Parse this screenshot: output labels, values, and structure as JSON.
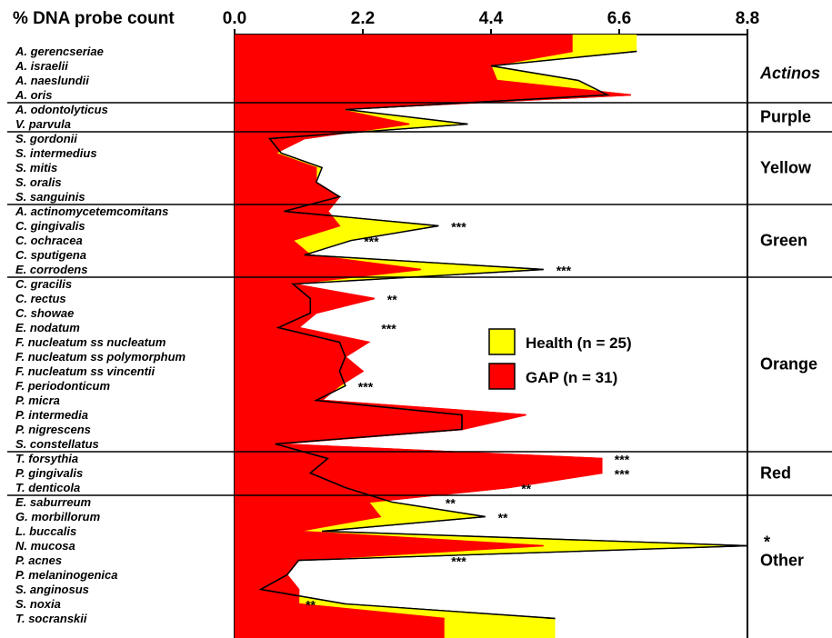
{
  "chart_data": {
    "type": "area",
    "title": "% DNA probe count",
    "orientation": "horizontal",
    "xlim": [
      0,
      8.8
    ],
    "ticks": [
      "0.0",
      "2.2",
      "4.4",
      "6.6",
      "8.8"
    ],
    "tick_values": [
      0,
      2.2,
      4.4,
      6.6,
      8.8
    ],
    "grid": false,
    "legend_position": "center-right",
    "species": [
      "A. gerencseriae",
      "A. israelii",
      "A. naeslundii",
      "A. oris",
      "A. odontolyticus",
      "V. parvula",
      "S. gordonii",
      "S. intermedius",
      "S. mitis",
      "S. oralis",
      "S. sanguinis",
      "A. actinomycetemcomitans",
      "C. gingivalis",
      "C. ochracea",
      "C. sputigena",
      "E. corrodens",
      "C. gracilis",
      "C. rectus",
      "C. showae",
      "E. nodatum",
      "F. nucleatum ss nucleatum",
      "F. nucleatum ss polymorphum",
      "F. nucleatum ss vincentii",
      "F. periodonticum",
      "P. micra",
      "P. intermedia",
      "P. nigrescens",
      "S. constellatus",
      "T. forsythia",
      "P. gingivalis",
      "T. denticola",
      "E. saburreum",
      "G. morbillorum",
      "L. buccalis",
      "N. mucosa",
      "P. acnes",
      "P. melaninogenica",
      "S. anginosus",
      "S. noxia",
      "T. socranskii"
    ],
    "complexes": [
      {
        "name": "Actinos",
        "start": 0,
        "end": 3,
        "italic": true
      },
      {
        "name": "Purple",
        "start": 4,
        "end": 5,
        "italic": false
      },
      {
        "name": "Yellow",
        "start": 6,
        "end": 10,
        "italic": false
      },
      {
        "name": "Green",
        "start": 11,
        "end": 15,
        "italic": false
      },
      {
        "name": "Orange",
        "start": 16,
        "end": 27,
        "italic": false
      },
      {
        "name": "Red",
        "start": 28,
        "end": 30,
        "italic": false
      },
      {
        "name": "Other",
        "start": 31,
        "end": 39,
        "italic": false,
        "marker": "*"
      }
    ],
    "series": [
      {
        "name": "Health (n = 25)",
        "color": "#ffff00",
        "values": [
          6.9,
          4.4,
          5.9,
          6.4,
          1.9,
          4.0,
          0.6,
          0.8,
          1.5,
          1.4,
          1.8,
          0.85,
          3.5,
          2.0,
          1.2,
          5.3,
          1.0,
          1.3,
          1.3,
          0.75,
          1.8,
          1.9,
          1.8,
          1.9,
          1.4,
          3.9,
          3.9,
          0.7,
          1.6,
          1.3,
          1.9,
          2.7,
          4.3,
          1.5,
          8.8,
          1.1,
          0.9,
          0.45,
          1.9,
          5.5
        ]
      },
      {
        "name": "GAP (n = 31)",
        "color": "#ff0000",
        "values": [
          5.8,
          4.4,
          4.5,
          6.8,
          1.8,
          3.0,
          1.2,
          0.7,
          1.4,
          1.4,
          1.8,
          1.6,
          1.8,
          1.0,
          1.3,
          3.2,
          1.0,
          2.4,
          1.4,
          1.1,
          2.3,
          1.9,
          2.2,
          1.8,
          1.5,
          5.0,
          3.9,
          0.75,
          6.3,
          6.3,
          4.7,
          2.3,
          2.5,
          1.1,
          5.3,
          1.1,
          0.9,
          1.1,
          1.1,
          3.6
        ]
      }
    ],
    "significance": [
      {
        "index": 12,
        "text": "***",
        "value": 3.5
      },
      {
        "index": 13,
        "text": "***",
        "value": 2.0
      },
      {
        "index": 15,
        "text": "***",
        "value": 5.3
      },
      {
        "index": 17,
        "text": "**",
        "value": 2.4
      },
      {
        "index": 19,
        "text": "***",
        "value": 2.3
      },
      {
        "index": 23,
        "text": "***",
        "value": 1.9
      },
      {
        "index": 28,
        "text": "***",
        "value": 6.3
      },
      {
        "index": 29,
        "text": "***",
        "value": 6.3
      },
      {
        "index": 30,
        "text": "**",
        "value": 4.7
      },
      {
        "index": 31,
        "text": "**",
        "value": 3.4
      },
      {
        "index": 32,
        "text": "**",
        "value": 4.3
      },
      {
        "index": 35,
        "text": "***",
        "value": 3.5
      },
      {
        "index": 38,
        "text": "**",
        "value": 1.0
      }
    ]
  }
}
